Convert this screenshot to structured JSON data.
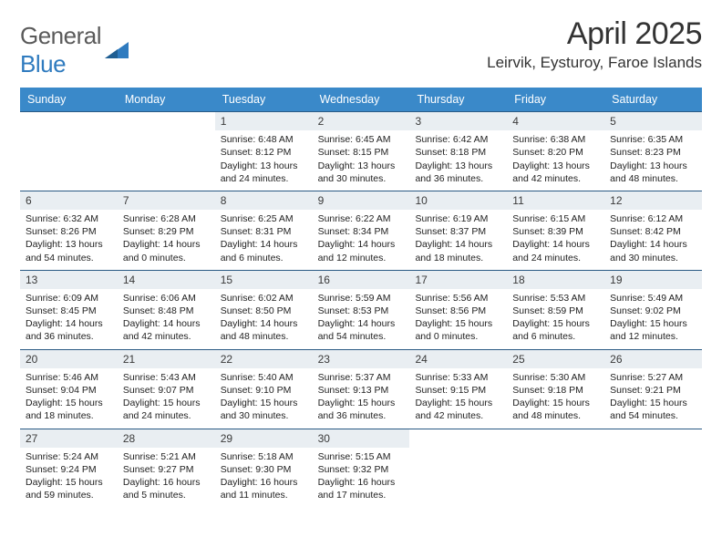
{
  "brand": {
    "part1": "General",
    "part2": "Blue"
  },
  "title": "April 2025",
  "location": "Leirvik, Eysturoy, Faroe Islands",
  "colors": {
    "header_bg": "#3a89c9",
    "header_text": "#ffffff",
    "daynum_bg": "#e9eef2",
    "border": "#2a5a84",
    "brand_gray": "#5a5a5a",
    "brand_blue": "#2f7bbf"
  },
  "weekdays": [
    "Sunday",
    "Monday",
    "Tuesday",
    "Wednesday",
    "Thursday",
    "Friday",
    "Saturday"
  ],
  "weeks": [
    [
      null,
      null,
      {
        "n": "1",
        "sr": "Sunrise: 6:48 AM",
        "ss": "Sunset: 8:12 PM",
        "dl1": "Daylight: 13 hours",
        "dl2": "and 24 minutes."
      },
      {
        "n": "2",
        "sr": "Sunrise: 6:45 AM",
        "ss": "Sunset: 8:15 PM",
        "dl1": "Daylight: 13 hours",
        "dl2": "and 30 minutes."
      },
      {
        "n": "3",
        "sr": "Sunrise: 6:42 AM",
        "ss": "Sunset: 8:18 PM",
        "dl1": "Daylight: 13 hours",
        "dl2": "and 36 minutes."
      },
      {
        "n": "4",
        "sr": "Sunrise: 6:38 AM",
        "ss": "Sunset: 8:20 PM",
        "dl1": "Daylight: 13 hours",
        "dl2": "and 42 minutes."
      },
      {
        "n": "5",
        "sr": "Sunrise: 6:35 AM",
        "ss": "Sunset: 8:23 PM",
        "dl1": "Daylight: 13 hours",
        "dl2": "and 48 minutes."
      }
    ],
    [
      {
        "n": "6",
        "sr": "Sunrise: 6:32 AM",
        "ss": "Sunset: 8:26 PM",
        "dl1": "Daylight: 13 hours",
        "dl2": "and 54 minutes."
      },
      {
        "n": "7",
        "sr": "Sunrise: 6:28 AM",
        "ss": "Sunset: 8:29 PM",
        "dl1": "Daylight: 14 hours",
        "dl2": "and 0 minutes."
      },
      {
        "n": "8",
        "sr": "Sunrise: 6:25 AM",
        "ss": "Sunset: 8:31 PM",
        "dl1": "Daylight: 14 hours",
        "dl2": "and 6 minutes."
      },
      {
        "n": "9",
        "sr": "Sunrise: 6:22 AM",
        "ss": "Sunset: 8:34 PM",
        "dl1": "Daylight: 14 hours",
        "dl2": "and 12 minutes."
      },
      {
        "n": "10",
        "sr": "Sunrise: 6:19 AM",
        "ss": "Sunset: 8:37 PM",
        "dl1": "Daylight: 14 hours",
        "dl2": "and 18 minutes."
      },
      {
        "n": "11",
        "sr": "Sunrise: 6:15 AM",
        "ss": "Sunset: 8:39 PM",
        "dl1": "Daylight: 14 hours",
        "dl2": "and 24 minutes."
      },
      {
        "n": "12",
        "sr": "Sunrise: 6:12 AM",
        "ss": "Sunset: 8:42 PM",
        "dl1": "Daylight: 14 hours",
        "dl2": "and 30 minutes."
      }
    ],
    [
      {
        "n": "13",
        "sr": "Sunrise: 6:09 AM",
        "ss": "Sunset: 8:45 PM",
        "dl1": "Daylight: 14 hours",
        "dl2": "and 36 minutes."
      },
      {
        "n": "14",
        "sr": "Sunrise: 6:06 AM",
        "ss": "Sunset: 8:48 PM",
        "dl1": "Daylight: 14 hours",
        "dl2": "and 42 minutes."
      },
      {
        "n": "15",
        "sr": "Sunrise: 6:02 AM",
        "ss": "Sunset: 8:50 PM",
        "dl1": "Daylight: 14 hours",
        "dl2": "and 48 minutes."
      },
      {
        "n": "16",
        "sr": "Sunrise: 5:59 AM",
        "ss": "Sunset: 8:53 PM",
        "dl1": "Daylight: 14 hours",
        "dl2": "and 54 minutes."
      },
      {
        "n": "17",
        "sr": "Sunrise: 5:56 AM",
        "ss": "Sunset: 8:56 PM",
        "dl1": "Daylight: 15 hours",
        "dl2": "and 0 minutes."
      },
      {
        "n": "18",
        "sr": "Sunrise: 5:53 AM",
        "ss": "Sunset: 8:59 PM",
        "dl1": "Daylight: 15 hours",
        "dl2": "and 6 minutes."
      },
      {
        "n": "19",
        "sr": "Sunrise: 5:49 AM",
        "ss": "Sunset: 9:02 PM",
        "dl1": "Daylight: 15 hours",
        "dl2": "and 12 minutes."
      }
    ],
    [
      {
        "n": "20",
        "sr": "Sunrise: 5:46 AM",
        "ss": "Sunset: 9:04 PM",
        "dl1": "Daylight: 15 hours",
        "dl2": "and 18 minutes."
      },
      {
        "n": "21",
        "sr": "Sunrise: 5:43 AM",
        "ss": "Sunset: 9:07 PM",
        "dl1": "Daylight: 15 hours",
        "dl2": "and 24 minutes."
      },
      {
        "n": "22",
        "sr": "Sunrise: 5:40 AM",
        "ss": "Sunset: 9:10 PM",
        "dl1": "Daylight: 15 hours",
        "dl2": "and 30 minutes."
      },
      {
        "n": "23",
        "sr": "Sunrise: 5:37 AM",
        "ss": "Sunset: 9:13 PM",
        "dl1": "Daylight: 15 hours",
        "dl2": "and 36 minutes."
      },
      {
        "n": "24",
        "sr": "Sunrise: 5:33 AM",
        "ss": "Sunset: 9:15 PM",
        "dl1": "Daylight: 15 hours",
        "dl2": "and 42 minutes."
      },
      {
        "n": "25",
        "sr": "Sunrise: 5:30 AM",
        "ss": "Sunset: 9:18 PM",
        "dl1": "Daylight: 15 hours",
        "dl2": "and 48 minutes."
      },
      {
        "n": "26",
        "sr": "Sunrise: 5:27 AM",
        "ss": "Sunset: 9:21 PM",
        "dl1": "Daylight: 15 hours",
        "dl2": "and 54 minutes."
      }
    ],
    [
      {
        "n": "27",
        "sr": "Sunrise: 5:24 AM",
        "ss": "Sunset: 9:24 PM",
        "dl1": "Daylight: 15 hours",
        "dl2": "and 59 minutes."
      },
      {
        "n": "28",
        "sr": "Sunrise: 5:21 AM",
        "ss": "Sunset: 9:27 PM",
        "dl1": "Daylight: 16 hours",
        "dl2": "and 5 minutes."
      },
      {
        "n": "29",
        "sr": "Sunrise: 5:18 AM",
        "ss": "Sunset: 9:30 PM",
        "dl1": "Daylight: 16 hours",
        "dl2": "and 11 minutes."
      },
      {
        "n": "30",
        "sr": "Sunrise: 5:15 AM",
        "ss": "Sunset: 9:32 PM",
        "dl1": "Daylight: 16 hours",
        "dl2": "and 17 minutes."
      },
      null,
      null,
      null
    ]
  ]
}
